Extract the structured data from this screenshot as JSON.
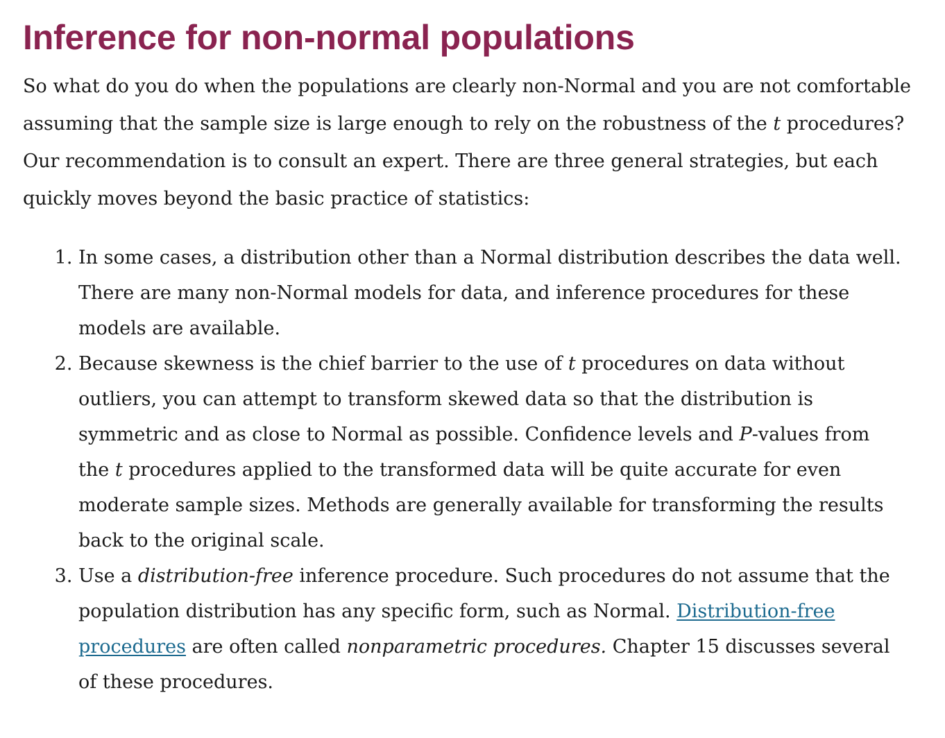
{
  "heading": "Inference for non-normal populations",
  "intro": {
    "p1": "So what do you do when the populations are clearly non-Normal and you are not comfortable assuming that the sample size is large enough to rely on the robustness of the ",
    "t": "t",
    "p2": " procedures? Our recommendation is to consult an expert. There are three general strategies, but each quickly moves beyond the basic practice of statistics:"
  },
  "items": [
    {
      "text": "In some cases, a distribution other than a Normal distribution describes the data well. There are many non-Normal models for data, and inference procedures for these models are available."
    },
    {
      "p1": "Because skewness is the chief barrier to the use of ",
      "t1": "t",
      "p2": " procedures on data without outliers, you can attempt to transform skewed data so that the distribution is symmetric and as close to Normal as possible. Confidence levels and ",
      "P": "P",
      "p3": "-values from the ",
      "t2": "t",
      "p4": " procedures applied to the transformed data will be quite accurate for even moderate sample sizes. Methods are generally available for transforming the results back to the original scale."
    },
    {
      "p1": "Use a ",
      "em1": "distribution-free",
      "p2": " inference procedure. Such procedures do not assume that the population distribution has any specific form, such as Normal. ",
      "link": "Distribution-free procedures",
      "p3": " are often called ",
      "em2": "nonparametric procedures.",
      "p4": " Chapter 15 discusses several of these procedures."
    }
  ]
}
